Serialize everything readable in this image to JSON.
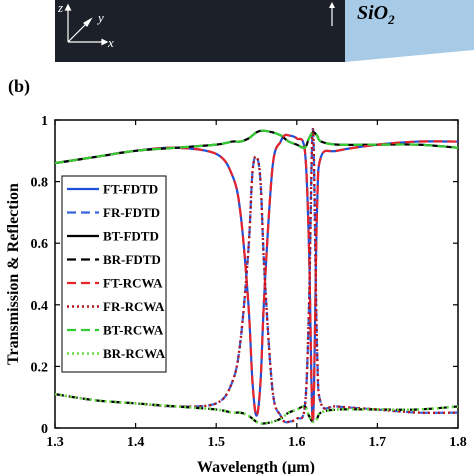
{
  "top_panel": {
    "substrate_label": "SiO",
    "substrate_subscript": "2",
    "axis_z": "z",
    "axis_y": "y",
    "axis_x": "x",
    "colors": {
      "block": "#1c2129",
      "substrate": "#a7cbe6"
    }
  },
  "panel_label": "(b)",
  "chart_data": {
    "type": "line",
    "title": "",
    "xlabel": "Wavelength (μm)",
    "ylabel": "Transmission & Reflection",
    "xlim": [
      1.3,
      1.8
    ],
    "ylim": [
      0,
      1
    ],
    "xticks": [
      "1.3",
      "1.4",
      "1.5",
      "1.6",
      "1.7",
      "1.8"
    ],
    "yticks": [
      "0",
      "0.2",
      "0.4",
      "0.6",
      "0.8",
      "1"
    ],
    "xtick_values": [
      1.3,
      1.4,
      1.5,
      1.6,
      1.7,
      1.8
    ],
    "ytick_values": [
      0,
      0.2,
      0.4,
      0.6,
      0.8,
      1
    ],
    "grid": false,
    "legend_position": "left",
    "x": [
      1.3,
      1.35,
      1.4,
      1.45,
      1.5,
      1.52,
      1.53,
      1.54,
      1.545,
      1.55,
      1.555,
      1.56,
      1.57,
      1.58,
      1.585,
      1.59,
      1.6,
      1.61,
      1.615,
      1.62,
      1.625,
      1.63,
      1.65,
      1.7,
      1.75,
      1.8
    ],
    "series": [
      {
        "name": "FT-FDTD",
        "color": "#1f4fd8",
        "dash": "solid",
        "width": 2.2,
        "values": [
          0.86,
          0.88,
          0.9,
          0.91,
          0.89,
          0.82,
          0.7,
          0.4,
          0.15,
          0.04,
          0.15,
          0.45,
          0.85,
          0.93,
          0.95,
          0.95,
          0.94,
          0.9,
          0.6,
          0.02,
          0.7,
          0.88,
          0.9,
          0.92,
          0.93,
          0.93
        ]
      },
      {
        "name": "FR-FDTD",
        "color": "#3a63e0",
        "dash": "9 5",
        "width": 2.2,
        "values": [
          0.11,
          0.09,
          0.08,
          0.07,
          0.08,
          0.15,
          0.28,
          0.58,
          0.83,
          0.88,
          0.8,
          0.5,
          0.12,
          0.04,
          0.02,
          0.02,
          0.03,
          0.07,
          0.38,
          0.97,
          0.27,
          0.08,
          0.07,
          0.06,
          0.05,
          0.05
        ]
      },
      {
        "name": "BT-FDTD",
        "color": "#000000",
        "dash": "solid",
        "width": 2.2,
        "values": [
          0.86,
          0.88,
          0.9,
          0.91,
          0.92,
          0.93,
          0.93,
          0.94,
          0.95,
          0.96,
          0.965,
          0.965,
          0.96,
          0.95,
          0.94,
          0.93,
          0.92,
          0.91,
          0.94,
          0.96,
          0.95,
          0.93,
          0.92,
          0.92,
          0.92,
          0.91
        ]
      },
      {
        "name": "BR-FDTD",
        "color": "#000000",
        "dash": "9 5",
        "width": 2.2,
        "values": [
          0.11,
          0.09,
          0.08,
          0.07,
          0.06,
          0.05,
          0.05,
          0.04,
          0.03,
          0.02,
          0.015,
          0.015,
          0.02,
          0.03,
          0.04,
          0.05,
          0.06,
          0.07,
          0.04,
          0.02,
          0.03,
          0.05,
          0.06,
          0.06,
          0.06,
          0.07
        ]
      },
      {
        "name": "FT-RCWA",
        "color": "#e8242a",
        "dash": "9 5",
        "width": 2.2,
        "values": [
          0.86,
          0.88,
          0.9,
          0.91,
          0.89,
          0.82,
          0.7,
          0.4,
          0.15,
          0.04,
          0.15,
          0.45,
          0.85,
          0.93,
          0.95,
          0.95,
          0.94,
          0.9,
          0.6,
          0.02,
          0.7,
          0.88,
          0.9,
          0.92,
          0.93,
          0.93
        ]
      },
      {
        "name": "FR-RCWA",
        "color": "#b5121b",
        "dash": "2 3",
        "width": 2.4,
        "values": [
          0.11,
          0.09,
          0.08,
          0.07,
          0.08,
          0.15,
          0.28,
          0.58,
          0.83,
          0.88,
          0.8,
          0.5,
          0.12,
          0.04,
          0.02,
          0.02,
          0.03,
          0.07,
          0.38,
          0.97,
          0.27,
          0.08,
          0.07,
          0.06,
          0.05,
          0.05
        ]
      },
      {
        "name": "BT-RCWA",
        "color": "#33cc33",
        "dash": "9 5",
        "width": 2.2,
        "values": [
          0.86,
          0.88,
          0.9,
          0.91,
          0.92,
          0.93,
          0.93,
          0.94,
          0.95,
          0.96,
          0.965,
          0.965,
          0.96,
          0.95,
          0.94,
          0.93,
          0.92,
          0.91,
          0.94,
          0.96,
          0.95,
          0.93,
          0.92,
          0.92,
          0.92,
          0.91
        ]
      },
      {
        "name": "BR-RCWA",
        "color": "#66dd44",
        "dash": "2 3",
        "width": 2.6,
        "values": [
          0.11,
          0.09,
          0.08,
          0.07,
          0.06,
          0.05,
          0.05,
          0.04,
          0.03,
          0.02,
          0.015,
          0.015,
          0.02,
          0.03,
          0.04,
          0.05,
          0.06,
          0.07,
          0.04,
          0.02,
          0.03,
          0.05,
          0.06,
          0.06,
          0.06,
          0.07
        ]
      }
    ]
  }
}
